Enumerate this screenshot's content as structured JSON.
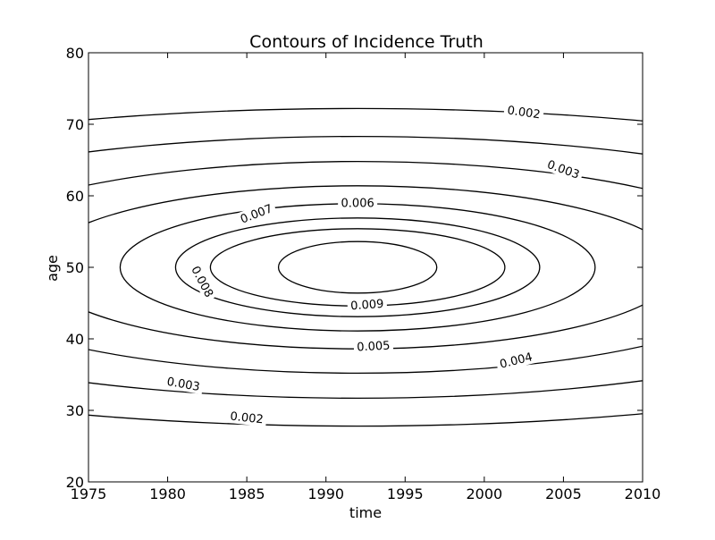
{
  "chart_data": {
    "type": "contour",
    "title": "Contours of Incidence Truth",
    "xlabel": "time",
    "ylabel": "age",
    "xlim": [
      1975,
      2010
    ],
    "ylim": [
      20,
      80
    ],
    "xticks": [
      1975,
      1980,
      1985,
      1990,
      1995,
      2000,
      2005,
      2010
    ],
    "yticks": [
      20,
      30,
      40,
      50,
      60,
      70,
      80
    ],
    "grid": false,
    "center": {
      "time": 1992,
      "age": 50
    },
    "levels": [
      {
        "value": 0.002,
        "label": "0.002",
        "time_radius": 46.5,
        "age_radius": 22.2
      },
      {
        "value": 0.003,
        "label": "0.003",
        "time_radius": 36.0,
        "age_radius": 18.3
      },
      {
        "value": 0.004,
        "label": "0.004",
        "time_radius": 27.0,
        "age_radius": 14.8
      },
      {
        "value": 0.005,
        "label": "0.005",
        "time_radius": 20.3,
        "age_radius": 11.4
      },
      {
        "value": 0.006,
        "label": "0.006",
        "time_radius": 15.0,
        "age_radius": 8.9
      },
      {
        "value": 0.007,
        "label": "0.007",
        "time_radius": 11.5,
        "age_radius": 6.9
      },
      {
        "value": 0.008,
        "label": "0.008",
        "time_radius": 9.3,
        "age_radius": 5.4
      },
      {
        "value": 0.009,
        "label": "0.009",
        "time_radius": 5.0,
        "age_radius": 3.6
      }
    ],
    "contour_labels": [
      {
        "text": "0.002",
        "time": 2002.5,
        "age": 71.7,
        "angle": 8
      },
      {
        "text": "0.002",
        "time": 1985.0,
        "age": 29.0,
        "angle": 6
      },
      {
        "text": "0.003",
        "time": 2005.0,
        "age": 63.7,
        "angle": 20
      },
      {
        "text": "0.003",
        "time": 1981.0,
        "age": 33.7,
        "angle": 10
      },
      {
        "text": "0.004",
        "time": 2002.0,
        "age": 37.0,
        "angle": -14
      },
      {
        "text": "0.005",
        "time": 1993.0,
        "age": 39.0,
        "angle": -3
      },
      {
        "text": "0.006",
        "time": 1992.0,
        "age": 59.0,
        "angle": 0
      },
      {
        "text": "0.007",
        "time": 1985.6,
        "age": 57.5,
        "angle": -21
      },
      {
        "text": "0.008",
        "time": 1982.2,
        "age": 48.0,
        "angle": 62
      },
      {
        "text": "0.009",
        "time": 1992.6,
        "age": 44.8,
        "angle": -4
      }
    ]
  }
}
